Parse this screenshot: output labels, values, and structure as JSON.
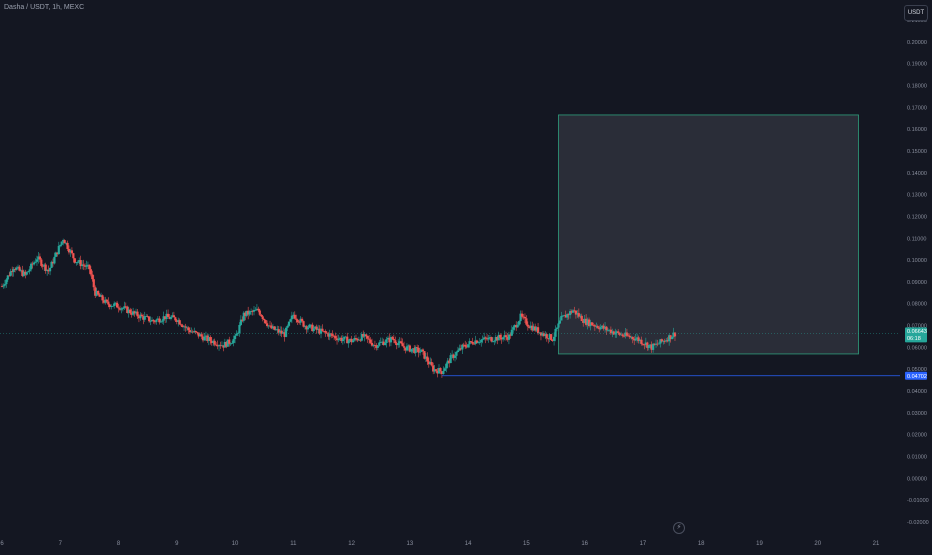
{
  "header": {
    "symbol": "Dasha / USDT, 1h, MEXC"
  },
  "toolbar": {
    "currency": "USDT"
  },
  "chart_data": {
    "type": "candlestick",
    "title": "Dasha / USDT, 1h, MEXC",
    "ylim": [
      -0.022,
      0.22
    ],
    "y_ticks": [
      "0.21000",
      "0.20000",
      "0.19000",
      "0.18000",
      "0.17000",
      "0.16000",
      "0.15000",
      "0.14000",
      "0.13000",
      "0.12000",
      "0.11000",
      "0.10000",
      "0.09000",
      "0.08000",
      "0.07000",
      "0.06000",
      "0.05000",
      "0.04000",
      "0.03000",
      "0.02000",
      "0.01000",
      "0.00000",
      "-0.01000",
      "-0.02000"
    ],
    "x_ticks": [
      "6",
      "7",
      "8",
      "9",
      "10",
      "11",
      "12",
      "13",
      "14",
      "15",
      "16",
      "17",
      "18",
      "19",
      "20",
      "21"
    ],
    "xlim": [
      6.0,
      21.0
    ],
    "close_series": [
      {
        "t": 6.0,
        "c": 0.088
      },
      {
        "t": 6.2,
        "c": 0.097
      },
      {
        "t": 6.4,
        "c": 0.093
      },
      {
        "t": 6.6,
        "c": 0.101
      },
      {
        "t": 6.8,
        "c": 0.095
      },
      {
        "t": 7.05,
        "c": 0.11
      },
      {
        "t": 7.25,
        "c": 0.1
      },
      {
        "t": 7.5,
        "c": 0.096
      },
      {
        "t": 7.6,
        "c": 0.085
      },
      {
        "t": 7.8,
        "c": 0.08
      },
      {
        "t": 8.0,
        "c": 0.079
      },
      {
        "t": 8.3,
        "c": 0.075
      },
      {
        "t": 8.6,
        "c": 0.072
      },
      {
        "t": 8.8,
        "c": 0.074
      },
      {
        "t": 9.0,
        "c": 0.073
      },
      {
        "t": 9.2,
        "c": 0.068
      },
      {
        "t": 9.5,
        "c": 0.064
      },
      {
        "t": 9.8,
        "c": 0.061
      },
      {
        "t": 10.0,
        "c": 0.064
      },
      {
        "t": 10.15,
        "c": 0.075
      },
      {
        "t": 10.4,
        "c": 0.077
      },
      {
        "t": 10.6,
        "c": 0.069
      },
      {
        "t": 10.85,
        "c": 0.066
      },
      {
        "t": 11.0,
        "c": 0.075
      },
      {
        "t": 11.2,
        "c": 0.07
      },
      {
        "t": 11.5,
        "c": 0.067
      },
      {
        "t": 11.8,
        "c": 0.064
      },
      {
        "t": 12.0,
        "c": 0.063
      },
      {
        "t": 12.2,
        "c": 0.065
      },
      {
        "t": 12.4,
        "c": 0.061
      },
      {
        "t": 12.7,
        "c": 0.064
      },
      {
        "t": 12.9,
        "c": 0.06
      },
      {
        "t": 13.2,
        "c": 0.058
      },
      {
        "t": 13.4,
        "c": 0.05
      },
      {
        "t": 13.55,
        "c": 0.049
      },
      {
        "t": 13.7,
        "c": 0.055
      },
      {
        "t": 13.9,
        "c": 0.06
      },
      {
        "t": 14.1,
        "c": 0.063
      },
      {
        "t": 14.4,
        "c": 0.064
      },
      {
        "t": 14.7,
        "c": 0.065
      },
      {
        "t": 14.9,
        "c": 0.074
      },
      {
        "t": 15.05,
        "c": 0.07
      },
      {
        "t": 15.3,
        "c": 0.066
      },
      {
        "t": 15.45,
        "c": 0.064
      },
      {
        "t": 15.6,
        "c": 0.073
      },
      {
        "t": 15.8,
        "c": 0.077
      },
      {
        "t": 16.0,
        "c": 0.072
      },
      {
        "t": 16.3,
        "c": 0.069
      },
      {
        "t": 16.6,
        "c": 0.066
      },
      {
        "t": 16.9,
        "c": 0.064
      },
      {
        "t": 17.15,
        "c": 0.06
      },
      {
        "t": 17.35,
        "c": 0.063
      },
      {
        "t": 17.55,
        "c": 0.0664
      }
    ],
    "annotations": {
      "rectangle": {
        "t_start": 15.55,
        "t_end": 20.7,
        "y_top": 0.1665,
        "y_bottom": 0.057,
        "border": "#2e9e7c",
        "fill": "#2a2d38"
      },
      "current_price": {
        "value": 0.0664,
        "label": "0.06643",
        "countdown": "06:18",
        "color": "#26a69a"
      },
      "horizontal_line": {
        "value": 0.047,
        "t_start": 13.55,
        "label": "0.04702",
        "color": "#2962ff"
      }
    },
    "colors": {
      "up": "#26a69a",
      "down": "#ef5350",
      "background": "#141722"
    },
    "grid": false
  }
}
